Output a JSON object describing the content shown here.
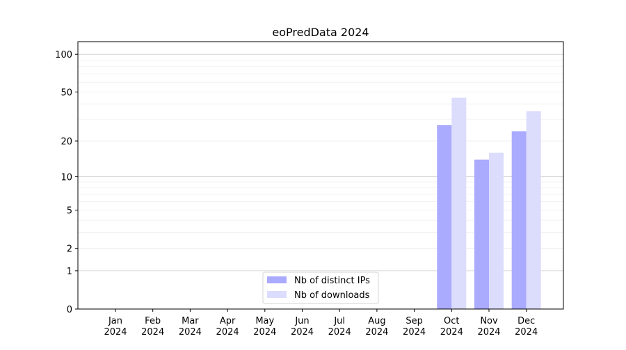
{
  "chart_data": {
    "type": "bar",
    "title": "eoPredData 2024",
    "xlabel": "",
    "ylabel": "",
    "yscale": "log10(1+y)",
    "ylim": [
      0,
      120
    ],
    "yticks": [
      0,
      1,
      2,
      5,
      10,
      20,
      50,
      100
    ],
    "grid": true,
    "categories": [
      "Jan\n2024",
      "Feb\n2024",
      "Mar\n2024",
      "Apr\n2024",
      "May\n2024",
      "Jun\n2024",
      "Jul\n2024",
      "Aug\n2024",
      "Sep\n2024",
      "Oct\n2024",
      "Nov\n2024",
      "Dec\n2024"
    ],
    "series": [
      {
        "name": "Nb of distinct IPs",
        "color": "#aaaaff",
        "values": [
          0,
          0,
          0,
          0,
          0,
          0,
          0,
          0,
          0,
          27,
          14,
          24
        ]
      },
      {
        "name": "Nb of downloads",
        "color": "#dcdcfd",
        "values": [
          0,
          0,
          0,
          0,
          0,
          0,
          0,
          0,
          0,
          45,
          16,
          35
        ]
      }
    ],
    "legend_position": "bottom-center"
  }
}
